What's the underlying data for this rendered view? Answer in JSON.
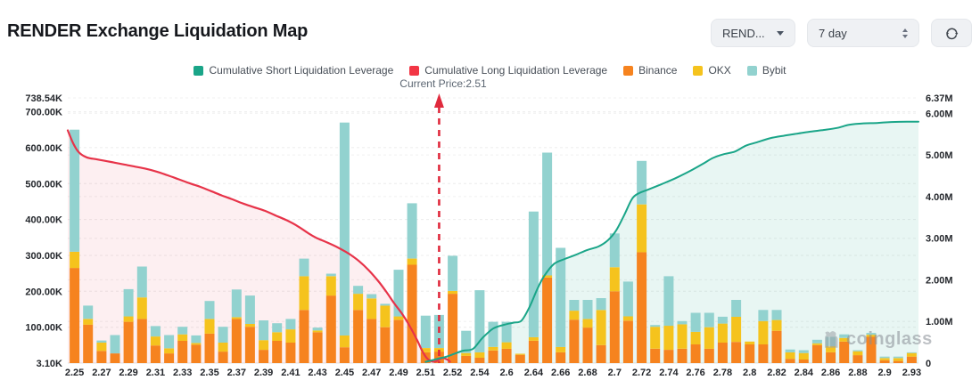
{
  "header": {
    "title": "RENDER Exchange Liquidation Map"
  },
  "controls": {
    "symbol_select": {
      "value": "REND..."
    },
    "period_select": {
      "value": "7 day"
    }
  },
  "legend": [
    {
      "label": "Cumulative Short Liquidation Leverage",
      "color": "#1aa588"
    },
    {
      "label": "Cumulative Long Liquidation Leverage",
      "color": "#f23645"
    },
    {
      "label": "Binance",
      "color": "#f6831f"
    },
    {
      "label": "OKX",
      "color": "#f5c31d"
    },
    {
      "label": "Bybit",
      "color": "#92d2cf"
    }
  ],
  "annotation": {
    "current_price_label": "Current Price:2.51",
    "current_price_value": 2.51
  },
  "watermark": {
    "text": "coinglass"
  },
  "chart_data": {
    "type": "bar",
    "subtype": "stacked-bars-with-cumulative-lines",
    "title": "RENDER Exchange Liquidation Map",
    "xlabel": "Price",
    "x_tick_labels": [
      "2.25",
      "2.27",
      "2.29",
      "2.31",
      "2.33",
      "2.35",
      "2.37",
      "2.39",
      "2.41",
      "2.43",
      "2.45",
      "2.47",
      "2.49",
      "2.51",
      "2.52",
      "2.54",
      "2.6",
      "2.64",
      "2.66",
      "2.68",
      "2.7",
      "2.72",
      "2.74",
      "2.76",
      "2.78",
      "2.8",
      "2.82",
      "2.84",
      "2.86",
      "2.88",
      "2.9",
      "2.93"
    ],
    "bars_per_label": 2,
    "left_axis": {
      "unit": "K",
      "max": 738.54,
      "ticks": [
        {
          "label": "738.54K",
          "value": 738.54
        },
        {
          "label": "700.00K",
          "value": 700
        },
        {
          "label": "600.00K",
          "value": 600
        },
        {
          "label": "500.00K",
          "value": 500
        },
        {
          "label": "400.00K",
          "value": 400
        },
        {
          "label": "300.00K",
          "value": 300
        },
        {
          "label": "200.00K",
          "value": 200
        },
        {
          "label": "100.00K",
          "value": 100
        },
        {
          "label": "3.10K",
          "value": 0
        }
      ]
    },
    "right_axis": {
      "unit": "M",
      "max": 6.37,
      "ticks": [
        {
          "label": "6.37M",
          "value": 6.37
        },
        {
          "label": "6.00M",
          "value": 6.0
        },
        {
          "label": "5.00M",
          "value": 5.0
        },
        {
          "label": "4.00M",
          "value": 4.0
        },
        {
          "label": "3.00M",
          "value": 3.0
        },
        {
          "label": "2.00M",
          "value": 2.0
        },
        {
          "label": "1.00M",
          "value": 1.0
        },
        {
          "label": "0",
          "value": 0
        }
      ]
    },
    "stacked_bars": {
      "order": [
        "Binance",
        "OKX",
        "Bybit"
      ],
      "colors": [
        "#f6831f",
        "#f5c31d",
        "#92d2cf"
      ],
      "unit": "K",
      "values": [
        [
          265,
          45,
          340
        ],
        [
          107,
          16,
          37
        ],
        [
          34,
          23,
          6
        ],
        [
          27,
          0,
          51
        ],
        [
          115,
          15,
          76
        ],
        [
          123,
          60,
          86
        ],
        [
          49,
          25,
          29
        ],
        [
          27,
          14,
          37
        ],
        [
          62,
          18,
          21
        ],
        [
          51,
          5,
          21
        ],
        [
          82,
          41,
          50
        ],
        [
          32,
          25,
          44
        ],
        [
          123,
          5,
          77
        ],
        [
          101,
          8,
          79
        ],
        [
          37,
          27,
          55
        ],
        [
          62,
          24,
          25
        ],
        [
          57,
          37,
          29
        ],
        [
          148,
          94,
          49
        ],
        [
          86,
          5,
          8
        ],
        [
          188,
          54,
          7
        ],
        [
          44,
          33,
          593
        ],
        [
          148,
          45,
          22
        ],
        [
          123,
          57,
          12
        ],
        [
          100,
          60,
          5
        ],
        [
          120,
          10,
          130
        ],
        [
          274,
          17,
          154
        ],
        [
          30,
          12,
          90
        ],
        [
          32,
          10,
          92
        ],
        [
          193,
          8,
          98
        ],
        [
          20,
          8,
          62
        ],
        [
          15,
          15,
          173
        ],
        [
          35,
          10,
          70
        ],
        [
          40,
          18,
          57
        ],
        [
          23,
          3,
          0
        ],
        [
          62,
          10,
          350
        ],
        [
          238,
          6,
          342
        ],
        [
          30,
          15,
          276
        ],
        [
          121,
          25,
          30
        ],
        [
          99,
          24,
          53
        ],
        [
          50,
          98,
          33
        ],
        [
          200,
          67,
          94
        ],
        [
          118,
          12,
          97
        ],
        [
          309,
          133,
          121
        ],
        [
          40,
          61,
          5
        ],
        [
          37,
          67,
          138
        ],
        [
          40,
          68,
          9
        ],
        [
          52,
          35,
          53
        ],
        [
          40,
          60,
          40
        ],
        [
          57,
          53,
          19
        ],
        [
          59,
          70,
          47
        ],
        [
          52,
          8,
          0
        ],
        [
          52,
          65,
          31
        ],
        [
          90,
          30,
          28
        ],
        [
          12,
          18,
          8
        ],
        [
          10,
          18,
          8
        ],
        [
          50,
          5,
          10
        ],
        [
          30,
          17,
          26
        ],
        [
          60,
          10,
          10
        ],
        [
          22,
          11,
          3
        ],
        [
          73,
          6,
          5
        ],
        [
          8,
          6,
          4
        ],
        [
          6,
          8,
          4
        ],
        [
          18,
          10,
          2
        ]
      ]
    },
    "cumulative_long_line": {
      "name": "Cumulative Long Liquidation Leverage",
      "axis": "left",
      "unit": "K",
      "color": "#e73349",
      "fill": "rgba(231,51,73,0.08)",
      "points": [
        [
          0,
          648
        ],
        [
          0.4,
          612
        ],
        [
          0.8,
          588
        ],
        [
          1.4,
          573
        ],
        [
          2.2,
          567
        ],
        [
          3.2,
          560
        ],
        [
          4.2,
          553
        ],
        [
          5,
          547
        ],
        [
          5.8,
          541
        ],
        [
          6.6,
          533
        ],
        [
          7.4,
          523
        ],
        [
          8.2,
          512
        ],
        [
          9,
          501
        ],
        [
          9.8,
          491
        ],
        [
          10.6,
          479
        ],
        [
          11.4,
          467
        ],
        [
          12.2,
          456
        ],
        [
          13,
          444
        ],
        [
          13.8,
          434
        ],
        [
          14.6,
          424
        ],
        [
          15.4,
          411
        ],
        [
          16.2,
          398
        ],
        [
          17,
          382
        ],
        [
          17.8,
          362
        ],
        [
          18.4,
          349
        ],
        [
          19.2,
          336
        ],
        [
          20,
          322
        ],
        [
          20.8,
          305
        ],
        [
          21.6,
          283
        ],
        [
          22.3,
          258
        ],
        [
          23,
          228
        ],
        [
          23.6,
          198
        ],
        [
          24.2,
          165
        ],
        [
          24.8,
          135
        ],
        [
          25.4,
          98
        ],
        [
          25.9,
          62
        ],
        [
          26.3,
          30
        ],
        [
          26.7,
          10
        ],
        [
          27.2,
          4
        ],
        [
          27.7,
          14
        ],
        [
          28.1,
          10
        ],
        [
          28.3,
          4
        ]
      ]
    },
    "cumulative_short_line": {
      "name": "Cumulative Short Liquidation Leverage",
      "axis": "right",
      "unit": "M",
      "color": "#1aa588",
      "fill": "rgba(26,165,136,0.10)",
      "points": [
        [
          26.5,
          0.03
        ],
        [
          27,
          0.07
        ],
        [
          27.6,
          0.12
        ],
        [
          28,
          0.15
        ],
        [
          28.6,
          0.22
        ],
        [
          29.3,
          0.3
        ],
        [
          30,
          0.34
        ],
        [
          30.7,
          0.6
        ],
        [
          31.5,
          0.83
        ],
        [
          32.3,
          0.92
        ],
        [
          33,
          0.97
        ],
        [
          33.6,
          1.02
        ],
        [
          34.2,
          1.35
        ],
        [
          34.8,
          1.8
        ],
        [
          35.3,
          2.1
        ],
        [
          36,
          2.38
        ],
        [
          36.8,
          2.5
        ],
        [
          37.6,
          2.6
        ],
        [
          38.5,
          2.72
        ],
        [
          39.3,
          2.8
        ],
        [
          40,
          2.95
        ],
        [
          40.6,
          3.18
        ],
        [
          41.2,
          3.55
        ],
        [
          41.8,
          3.95
        ],
        [
          42.3,
          4.08
        ],
        [
          43,
          4.17
        ],
        [
          44,
          4.3
        ],
        [
          45,
          4.44
        ],
        [
          46,
          4.6
        ],
        [
          47,
          4.78
        ],
        [
          47.8,
          4.93
        ],
        [
          48.6,
          5.02
        ],
        [
          49.4,
          5.08
        ],
        [
          50.2,
          5.22
        ],
        [
          51,
          5.3
        ],
        [
          52,
          5.4
        ],
        [
          53,
          5.46
        ],
        [
          54,
          5.51
        ],
        [
          55,
          5.56
        ],
        [
          56,
          5.6
        ],
        [
          57,
          5.65
        ],
        [
          57.8,
          5.72
        ],
        [
          58.6,
          5.75
        ],
        [
          60,
          5.77
        ],
        [
          61,
          5.79
        ],
        [
          63,
          5.8
        ]
      ]
    },
    "current_price_marker": {
      "x_index": 27.5,
      "color": "#e02a3d"
    },
    "grid": true,
    "legend_position": "top-center"
  }
}
